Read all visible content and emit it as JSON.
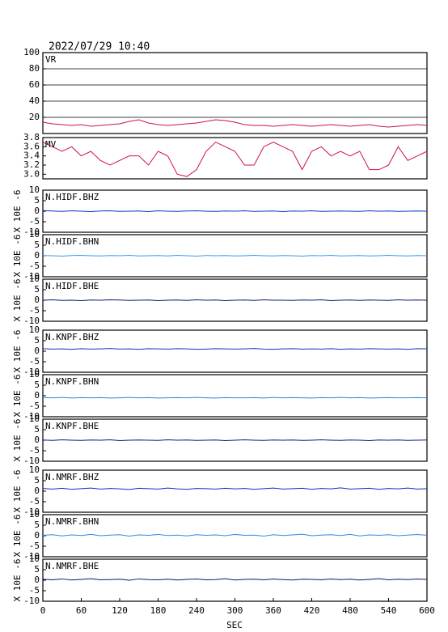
{
  "chart_data": {
    "type": "line",
    "title": "2022/07/29 10:40",
    "xlabel": "SEC",
    "x": [
      0,
      15,
      30,
      45,
      60,
      75,
      90,
      105,
      120,
      135,
      150,
      165,
      180,
      195,
      210,
      225,
      240,
      255,
      270,
      285,
      300,
      315,
      330,
      345,
      360,
      375,
      390,
      405,
      420,
      435,
      450,
      465,
      480,
      495,
      510,
      525,
      540,
      555,
      570,
      585,
      600
    ],
    "xlim": [
      0,
      600
    ],
    "xticks": [
      0,
      60,
      120,
      180,
      240,
      300,
      360,
      420,
      480,
      540,
      600
    ],
    "panels": [
      {
        "name": "VR",
        "color": "#d0104c",
        "grid": true,
        "ylim": [
          0,
          100
        ],
        "yticks": [
          20,
          40,
          60,
          80,
          100
        ],
        "values": [
          14,
          12,
          11,
          10,
          11,
          9,
          10,
          11,
          12,
          15,
          17,
          13,
          11,
          10,
          11,
          12,
          13,
          15,
          17,
          16,
          14,
          11,
          10,
          10,
          9,
          10,
          11,
          10,
          9,
          10,
          11,
          10,
          9,
          10,
          11,
          9,
          8,
          9,
          10,
          11,
          10
        ]
      },
      {
        "name": "MV",
        "color": "#d0104c",
        "grid": false,
        "ylim": [
          2.9,
          3.8
        ],
        "yticks": [
          {
            "value": 3,
            "label": "3.0"
          },
          3.2,
          3.4,
          3.6,
          3.8
        ],
        "values": [
          3.7,
          3.6,
          3.5,
          3.6,
          3.4,
          3.5,
          3.3,
          3.2,
          3.3,
          3.4,
          3.4,
          3.2,
          3.5,
          3.4,
          3.0,
          2.95,
          3.1,
          3.5,
          3.7,
          3.6,
          3.5,
          3.2,
          3.2,
          3.6,
          3.7,
          3.6,
          3.5,
          3.1,
          3.5,
          3.6,
          3.4,
          3.5,
          3.4,
          3.5,
          3.1,
          3.1,
          3.2,
          3.6,
          3.3,
          3.4,
          3.5
        ]
      },
      {
        "name": "N.HIDF.BHZ",
        "color": "#0033cc",
        "ylabel": "X 10E -6",
        "ylim": [
          -10,
          10
        ],
        "yticks": [
          -10,
          -5,
          0,
          5,
          10
        ],
        "values": [
          0.3,
          0.1,
          -0.1,
          0.2,
          0,
          -0.2,
          0.1,
          0.2,
          -0.1,
          0,
          0.1,
          -0.2,
          0.2,
          0,
          -0.1,
          0.1,
          0.2,
          0,
          -0.1,
          0.1,
          0,
          0.2,
          -0.1,
          0,
          0.1,
          -0.2,
          0.1,
          0,
          0.2,
          -0.1,
          0,
          0.1,
          0,
          -0.1,
          0.2,
          0,
          0.1,
          -0.1,
          0,
          0.1,
          0
        ]
      },
      {
        "name": "N.HIDF.BHN",
        "color": "#3399ee",
        "ylabel": "X 10E -6",
        "ylim": [
          -10,
          10
        ],
        "yticks": [
          -10,
          -5,
          0,
          5,
          10
        ],
        "values": [
          0.1,
          0,
          -0.2,
          0.1,
          0.2,
          0,
          -0.1,
          0.1,
          0,
          0.2,
          -0.1,
          0,
          0.1,
          -0.1,
          0.2,
          0,
          -0.2,
          0.1,
          0,
          0.1,
          -0.1,
          0,
          0.2,
          0,
          -0.1,
          0.1,
          0,
          -0.2,
          0.1,
          0,
          0.2,
          -0.1,
          0,
          0.1,
          -0.1,
          0,
          0.2,
          0,
          -0.1,
          0.1,
          0
        ]
      },
      {
        "name": "N.HIDF.BHE",
        "color": "#0a1a70",
        "ylabel": "X 10E -6",
        "ylim": [
          -10,
          10
        ],
        "yticks": [
          -10,
          -5,
          0,
          5,
          10
        ],
        "values": [
          0,
          0.2,
          -0.1,
          0,
          -0.2,
          0.1,
          0,
          0.2,
          0.1,
          -0.1,
          0,
          0.1,
          -0.2,
          0,
          0.1,
          -0.1,
          0.2,
          0,
          0.1,
          -0.2,
          0,
          0.1,
          -0.1,
          0.2,
          0,
          0,
          -0.1,
          0.1,
          0,
          0.2,
          -0.2,
          0,
          0.1,
          -0.1,
          0.1,
          0,
          -0.1,
          0.2,
          0,
          0.1,
          0
        ]
      },
      {
        "name": "N.KNPF.BHZ",
        "color": "#1133bb",
        "ylabel": "X 10E -6",
        "ylim": [
          -10,
          10
        ],
        "yticks": [
          -10,
          -5,
          0,
          5,
          10
        ],
        "values": [
          1.2,
          1.0,
          1.1,
          0.9,
          1.2,
          1.0,
          1.1,
          1.3,
          1.0,
          1.1,
          0.9,
          1.2,
          1.1,
          1.0,
          1.2,
          1.1,
          0.9,
          1.0,
          1.2,
          1.1,
          1.0,
          1.1,
          1.3,
          1.0,
          0.9,
          1.1,
          1.2,
          1.0,
          1.1,
          1.0,
          1.2,
          0.9,
          1.1,
          1.0,
          1.2,
          1.1,
          1.0,
          1.1,
          0.9,
          1.2,
          1.1
        ]
      },
      {
        "name": "N.KNPF.BHN",
        "color": "#2288dd",
        "ylabel": "X 10E -6",
        "ylim": [
          -10,
          10
        ],
        "yticks": [
          -10,
          -5,
          0,
          5,
          10
        ],
        "values": [
          -0.9,
          -1.0,
          -0.8,
          -1.1,
          -0.9,
          -1.0,
          -0.9,
          -1.1,
          -1.0,
          -0.8,
          -1.0,
          -0.9,
          -1.1,
          -1.0,
          -0.9,
          -1.0,
          -0.8,
          -1.0,
          -1.1,
          -0.9,
          -1.0,
          -1.0,
          -0.9,
          -1.1,
          -0.8,
          -1.0,
          -0.9,
          -1.0,
          -1.1,
          -0.9,
          -1.0,
          -0.8,
          -1.0,
          -0.9,
          -1.1,
          -1.0,
          -0.9,
          -1.0,
          -1.0,
          -0.9,
          -1.0
        ]
      },
      {
        "name": "N.KNPF.BHE",
        "color": "#0a1a70",
        "ylabel": "X 10E -6",
        "ylim": [
          -10,
          10
        ],
        "yticks": [
          -10,
          -5,
          0,
          5,
          10
        ],
        "values": [
          0.1,
          -0.1,
          0.2,
          0,
          -0.1,
          0.1,
          0,
          0.2,
          -0.2,
          0,
          0.1,
          0,
          -0.1,
          0.2,
          0,
          0.1,
          -0.1,
          0,
          0.1,
          -0.2,
          0,
          0.2,
          0,
          -0.1,
          0.1,
          0,
          0.1,
          -0.1,
          0,
          0.2,
          0,
          -0.1,
          0.1,
          0,
          -0.2,
          0.1,
          0,
          0.1,
          -0.1,
          0,
          0.1
        ]
      },
      {
        "name": "N.NMRF.BHZ",
        "color": "#1133bb",
        "ylabel": "X 10E -6",
        "ylim": [
          -10,
          10
        ],
        "yticks": [
          -10,
          -5,
          0,
          5,
          10
        ],
        "values": [
          1.3,
          1.0,
          1.4,
          0.9,
          1.2,
          1.5,
          1.0,
          1.3,
          1.1,
          0.8,
          1.4,
          1.2,
          1.0,
          1.5,
          1.1,
          0.9,
          1.3,
          1.2,
          1.0,
          1.4,
          1.1,
          1.3,
          0.9,
          1.2,
          1.5,
          1.0,
          1.2,
          1.4,
          0.9,
          1.3,
          1.1,
          1.6,
          1.0,
          1.2,
          1.4,
          0.9,
          1.3,
          1.1,
          1.5,
          1.0,
          1.2
        ]
      },
      {
        "name": "N.NMRF.BHN",
        "color": "#3388dd",
        "ylabel": "X 10E -6",
        "ylim": [
          -10,
          10
        ],
        "yticks": [
          -10,
          -5,
          0,
          5,
          10
        ],
        "values": [
          0.2,
          0.5,
          -0.1,
          0.4,
          0.1,
          0.6,
          0,
          0.3,
          0.5,
          -0.2,
          0.4,
          0.2,
          0.6,
          0.1,
          0.3,
          -0.1,
          0.5,
          0.2,
          0.4,
          0,
          0.6,
          0.2,
          0.3,
          -0.2,
          0.5,
          0.1,
          0.4,
          0.7,
          0.0,
          0.3,
          0.5,
          0.1,
          0.6,
          -0.1,
          0.4,
          0.2,
          0.5,
          0.0,
          0.3,
          0.6,
          0.2
        ]
      },
      {
        "name": "N.NMRF.BHE",
        "color": "#0a1a70",
        "ylabel": "X 10E -6",
        "ylim": [
          -10,
          10
        ],
        "yticks": [
          -10,
          -5,
          0,
          5,
          10
        ],
        "values": [
          0.5,
          0.2,
          0.6,
          0.1,
          0.4,
          0.7,
          0.2,
          0.3,
          0.5,
          0,
          0.6,
          0.3,
          0.2,
          0.5,
          0.1,
          0.4,
          0.6,
          0.2,
          0.3,
          0.7,
          0.1,
          0.4,
          0.5,
          0.2,
          0.6,
          0.3,
          0.1,
          0.5,
          0.4,
          0.2,
          0.6,
          0.3,
          0.5,
          0.1,
          0.4,
          0.7,
          0.2,
          0.5,
          0.3,
          0.6,
          0.4
        ]
      }
    ]
  }
}
